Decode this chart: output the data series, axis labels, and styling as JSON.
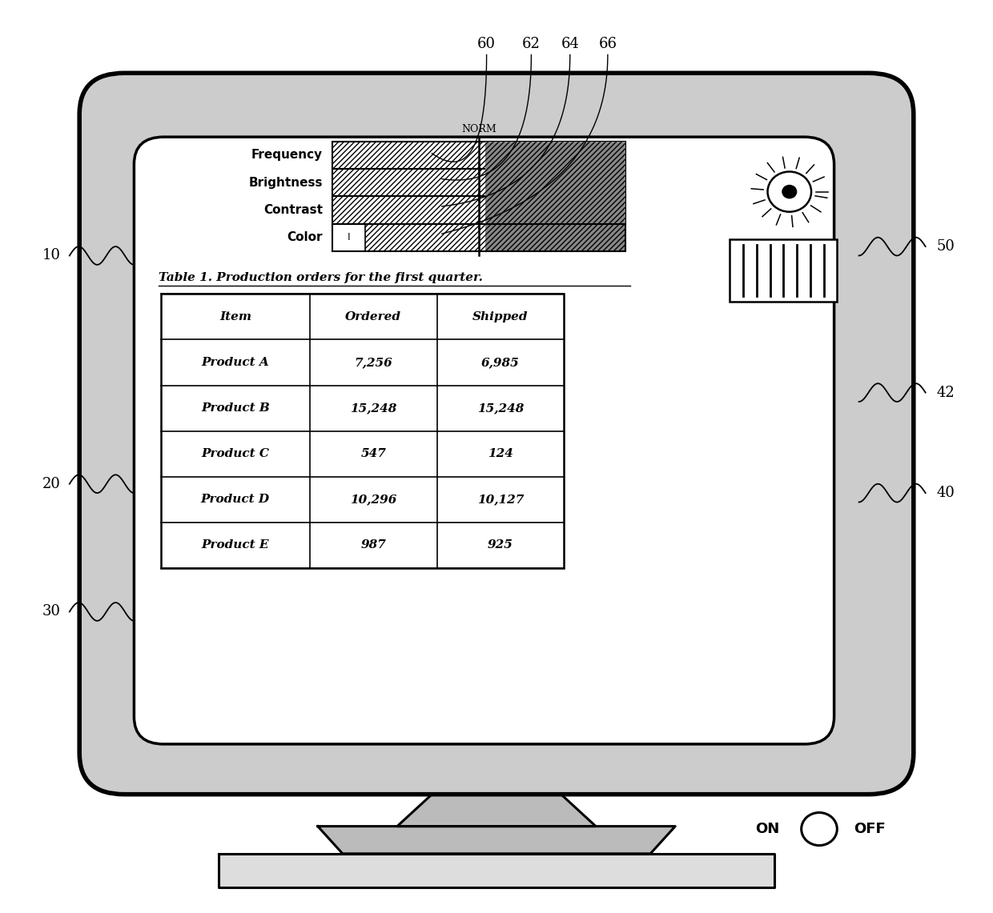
{
  "bg_color": "#ffffff",
  "table_title": "Table 1. Production orders for the first quarter.",
  "table_headers": [
    "Item",
    "Ordered",
    "Shipped"
  ],
  "table_rows": [
    [
      "Product A",
      "7,256",
      "6,985"
    ],
    [
      "Product B",
      "15,248",
      "15,248"
    ],
    [
      "Product C",
      "547",
      "124"
    ],
    [
      "Product D",
      "10,296",
      "10,127"
    ],
    [
      "Product E",
      "987",
      "925"
    ]
  ],
  "bar_labels": [
    "Frequency",
    "Brightness",
    "Contrast",
    "Color"
  ],
  "norm_label": "NORM",
  "left_refs": [
    [
      "10",
      0.72
    ],
    [
      "20",
      0.47
    ],
    [
      "30",
      0.33
    ]
  ],
  "right_refs": [
    [
      "50",
      0.73
    ],
    [
      "42",
      0.57
    ],
    [
      "40",
      0.46
    ]
  ],
  "top_refs": [
    [
      "60",
      0.49
    ],
    [
      "62",
      0.535
    ],
    [
      "64",
      0.574
    ],
    [
      "66",
      0.612
    ]
  ],
  "on_label": "ON",
  "off_label": "OFF"
}
